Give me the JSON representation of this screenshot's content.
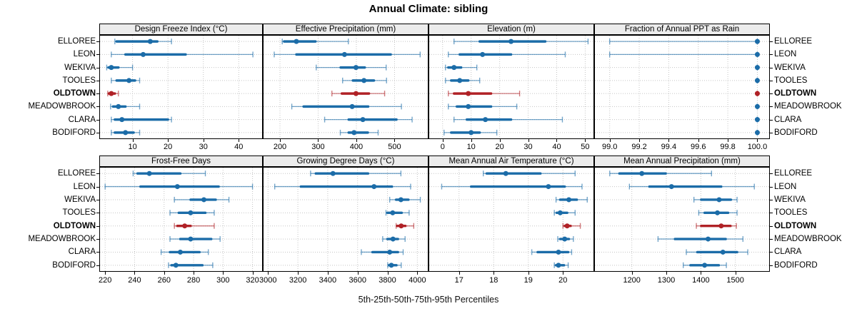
{
  "title": "Annual Climate: sibling",
  "caption": "5th-25th-50th-75th-95th Percentiles",
  "stations": [
    "ELLOREE",
    "LEON",
    "WEKIVA",
    "TOOLES",
    "OLDTOWN",
    "MEADOWBROOK",
    "CLARA",
    "BODIFORD"
  ],
  "highlight_station": "OLDTOWN",
  "colors": {
    "normal": "#1b6ca8",
    "highlight": "#b02126",
    "strip_bg": "#ececec",
    "grid": "#c5c5c5",
    "border": "#000000"
  },
  "chart_data": [
    {
      "type": "dot-whisker",
      "title": "Design Freeze Index (°C)",
      "row": 0,
      "col": 0,
      "xlim": [
        0.8,
        46.6
      ],
      "tick_values": [
        10,
        20,
        30,
        40
      ],
      "tick_labels": [
        "10",
        "20",
        "30",
        "40"
      ],
      "percentiles": [
        "5th",
        "25th",
        "50th",
        "75th",
        "95th"
      ],
      "series": [
        {
          "name": "ELLOREE",
          "p": [
            5.0,
            5.5,
            15.0,
            17.0,
            21.0
          ]
        },
        {
          "name": "LEON",
          "p": [
            4.0,
            8.0,
            13.0,
            25.0,
            44.0
          ]
        },
        {
          "name": "WEKIVA",
          "p": [
            2.7,
            3.2,
            4.0,
            6.0,
            10.0
          ]
        },
        {
          "name": "TOOLES",
          "p": [
            4.0,
            5.5,
            9.0,
            10.7,
            12.0
          ]
        },
        {
          "name": "OLDTOWN",
          "p": [
            3.0,
            3.3,
            4.0,
            5.0,
            6.0
          ]
        },
        {
          "name": "MEADOWBROOK",
          "p": [
            3.8,
            4.5,
            6.0,
            8.0,
            12.0
          ]
        },
        {
          "name": "CLARA",
          "p": [
            4.0,
            5.0,
            7.0,
            20.0,
            21.0
          ]
        },
        {
          "name": "BODIFORD",
          "p": [
            4.0,
            5.0,
            8.0,
            10.3,
            12.0
          ]
        }
      ]
    },
    {
      "type": "dot-whisker",
      "title": "Effective Precipitation (mm)",
      "row": 0,
      "col": 1,
      "xlim": [
        157,
        587
      ],
      "tick_values": [
        200,
        300,
        400,
        500
      ],
      "tick_labels": [
        "200",
        "300",
        "400",
        "500"
      ],
      "percentiles": [
        "5th",
        "25th",
        "50th",
        "75th",
        "95th"
      ],
      "series": [
        {
          "name": "ELLOREE",
          "p": [
            206,
            211,
            243,
            293,
            379
          ]
        },
        {
          "name": "LEON",
          "p": [
            185,
            243,
            369,
            490,
            567
          ]
        },
        {
          "name": "WEKIVA",
          "p": [
            295,
            359,
            399,
            422,
            478
          ]
        },
        {
          "name": "TOOLES",
          "p": [
            364,
            391,
            420,
            446,
            479
          ]
        },
        {
          "name": "OLDTOWN",
          "p": [
            336,
            362,
            399,
            433,
            474
          ]
        },
        {
          "name": "MEADOWBROOK",
          "p": [
            231,
            262,
            389,
            431,
            518
          ]
        },
        {
          "name": "CLARA",
          "p": [
            317,
            380,
            417,
            505,
            546
          ]
        },
        {
          "name": "BODIFORD",
          "p": [
            358,
            380,
            394,
            430,
            457
          ]
        }
      ]
    },
    {
      "type": "dot-whisker",
      "title": "Elevation (m)",
      "row": 0,
      "col": 2,
      "xlim": [
        -4.7,
        52.9
      ],
      "tick_values": [
        0,
        10,
        20,
        30,
        40,
        50
      ],
      "tick_labels": [
        "0",
        "10",
        "20",
        "30",
        "40",
        "50"
      ],
      "percentiles": [
        "5th",
        "25th",
        "50th",
        "75th",
        "95th"
      ],
      "series": [
        {
          "name": "ELLOREE",
          "p": [
            4.0,
            13.0,
            24.0,
            36.0,
            51.0
          ]
        },
        {
          "name": "LEON",
          "p": [
            2.0,
            6.0,
            14.0,
            24.0,
            43.0
          ]
        },
        {
          "name": "WEKIVA",
          "p": [
            1.0,
            2.0,
            4.0,
            6.5,
            12.0
          ]
        },
        {
          "name": "TOOLES",
          "p": [
            1.0,
            3.0,
            6.0,
            9.0,
            13.0
          ]
        },
        {
          "name": "OLDTOWN",
          "p": [
            2.0,
            4.0,
            9.0,
            17.0,
            27.0
          ]
        },
        {
          "name": "MEADOWBROOK",
          "p": [
            2.0,
            5.0,
            9.0,
            17.0,
            26.0
          ]
        },
        {
          "name": "CLARA",
          "p": [
            4.0,
            8.5,
            15.0,
            24.0,
            42.0
          ]
        },
        {
          "name": "BODIFORD",
          "p": [
            0.5,
            3.0,
            10.0,
            13.0,
            19.0
          ]
        }
      ]
    },
    {
      "type": "dot-whisker",
      "title": "Fraction of Annual PPT as Rain",
      "row": 0,
      "col": 3,
      "xlim": [
        98.9,
        100.08
      ],
      "tick_values": [
        99.0,
        99.2,
        99.4,
        99.6,
        99.8,
        100.0
      ],
      "tick_labels": [
        "99.0",
        "99.2",
        "99.4",
        "99.6",
        "99.8",
        "100.0"
      ],
      "percentiles": [
        "5th",
        "25th",
        "50th",
        "75th",
        "95th"
      ],
      "series": [
        {
          "name": "ELLOREE",
          "p": [
            99.0,
            100.0,
            100.0,
            100.0,
            100.0
          ]
        },
        {
          "name": "LEON",
          "p": [
            99.0,
            100.0,
            100.0,
            100.0,
            100.0
          ]
        },
        {
          "name": "WEKIVA",
          "p": [
            100.0,
            100.0,
            100.0,
            100.0,
            100.0
          ]
        },
        {
          "name": "TOOLES",
          "p": [
            100.0,
            100.0,
            100.0,
            100.0,
            100.0
          ]
        },
        {
          "name": "OLDTOWN",
          "p": [
            100.0,
            100.0,
            100.0,
            100.0,
            100.0
          ]
        },
        {
          "name": "MEADOWBROOK",
          "p": [
            100.0,
            100.0,
            100.0,
            100.0,
            100.0
          ]
        },
        {
          "name": "CLARA",
          "p": [
            100.0,
            100.0,
            100.0,
            100.0,
            100.0
          ]
        },
        {
          "name": "BODIFORD",
          "p": [
            100.0,
            100.0,
            100.0,
            100.0,
            100.0
          ]
        }
      ]
    },
    {
      "type": "dot-whisker",
      "title": "Frost-Free Days",
      "row": 1,
      "col": 0,
      "xlim": [
        216.5,
        326.5
      ],
      "tick_values": [
        220,
        240,
        260,
        280,
        300,
        320
      ],
      "tick_labels": [
        "220",
        "240",
        "260",
        "280",
        "300",
        "320"
      ],
      "percentiles": [
        "5th",
        "25th",
        "50th",
        "75th",
        "95th"
      ],
      "series": [
        {
          "name": "ELLOREE",
          "p": [
            239,
            242,
            250,
            271,
            288
          ]
        },
        {
          "name": "LEON",
          "p": [
            220,
            244,
            269,
            297,
            320
          ]
        },
        {
          "name": "WEKIVA",
          "p": [
            267,
            278,
            287,
            295,
            304
          ]
        },
        {
          "name": "TOOLES",
          "p": [
            264,
            270,
            278,
            288,
            294
          ]
        },
        {
          "name": "OLDTOWN",
          "p": [
            267,
            269,
            274,
            278,
            294
          ]
        },
        {
          "name": "MEADOWBROOK",
          "p": [
            264,
            271,
            278,
            292,
            298
          ]
        },
        {
          "name": "CLARA",
          "p": [
            258,
            264,
            271,
            284,
            290
          ]
        },
        {
          "name": "BODIFORD",
          "p": [
            263,
            265,
            268,
            286,
            293
          ]
        }
      ]
    },
    {
      "type": "dot-whisker",
      "title": "Growing Degree Days (°C)",
      "row": 1,
      "col": 1,
      "xlim": [
        2970,
        4070
      ],
      "tick_values": [
        3000,
        3200,
        3400,
        3600,
        3800,
        4000
      ],
      "tick_labels": [
        "3000",
        "3200",
        "3400",
        "3600",
        "3800",
        "4000"
      ],
      "percentiles": [
        "5th",
        "25th",
        "50th",
        "75th",
        "95th"
      ],
      "series": [
        {
          "name": "ELLOREE",
          "p": [
            3285,
            3320,
            3435,
            3670,
            3890
          ]
        },
        {
          "name": "LEON",
          "p": [
            3045,
            3220,
            3710,
            3830,
            3955
          ]
        },
        {
          "name": "WEKIVA",
          "p": [
            3815,
            3858,
            3890,
            3940,
            4020
          ]
        },
        {
          "name": "TOOLES",
          "p": [
            3790,
            3800,
            3835,
            3895,
            3945
          ]
        },
        {
          "name": "OLDTOWN",
          "p": [
            3858,
            3865,
            3892,
            3920,
            3976
          ]
        },
        {
          "name": "MEADOWBROOK",
          "p": [
            3768,
            3800,
            3837,
            3870,
            3918
          ]
        },
        {
          "name": "CLARA",
          "p": [
            3625,
            3700,
            3815,
            3870,
            3905
          ]
        },
        {
          "name": "BODIFORD",
          "p": [
            3802,
            3810,
            3826,
            3860,
            3892
          ]
        }
      ]
    },
    {
      "type": "dot-whisker",
      "title": "Mean Annual Air Temperature (°C)",
      "row": 1,
      "col": 2,
      "xlim": [
        16.14,
        20.88
      ],
      "tick_values": [
        17,
        18,
        19,
        20
      ],
      "tick_labels": [
        "17",
        "18",
        "19",
        "20"
      ],
      "percentiles": [
        "5th",
        "25th",
        "50th",
        "75th",
        "95th"
      ],
      "series": [
        {
          "name": "ELLOREE",
          "p": [
            17.7,
            17.8,
            18.35,
            19.35,
            20.35
          ]
        },
        {
          "name": "LEON",
          "p": [
            16.5,
            17.35,
            19.58,
            20.05,
            20.55
          ]
        },
        {
          "name": "WEKIVA",
          "p": [
            19.8,
            19.92,
            20.17,
            20.4,
            20.7
          ]
        },
        {
          "name": "TOOLES",
          "p": [
            19.75,
            19.82,
            19.92,
            20.12,
            20.35
          ]
        },
        {
          "name": "OLDTOWN",
          "p": [
            20.0,
            20.05,
            20.12,
            20.22,
            20.5
          ]
        },
        {
          "name": "MEADOWBROOK",
          "p": [
            19.85,
            19.92,
            20.05,
            20.17,
            20.3
          ]
        },
        {
          "name": "CLARA",
          "p": [
            19.1,
            19.27,
            19.87,
            20.15,
            20.25
          ]
        },
        {
          "name": "BODIFORD",
          "p": [
            19.75,
            19.8,
            19.87,
            20.03,
            20.15
          ]
        }
      ]
    },
    {
      "type": "dot-whisker",
      "title": "Mean Annual Precipitation (mm)",
      "row": 1,
      "col": 3,
      "xlim": [
        1093,
        1598
      ],
      "tick_values": [
        1200,
        1300,
        1400,
        1500
      ],
      "tick_labels": [
        "1200",
        "1300",
        "1400",
        "1500"
      ],
      "percentiles": [
        "5th",
        "25th",
        "50th",
        "75th",
        "95th"
      ],
      "series": [
        {
          "name": "ELLOREE",
          "p": [
            1136,
            1164,
            1229,
            1298,
            1431
          ]
        },
        {
          "name": "LEON",
          "p": [
            1193,
            1251,
            1315,
            1459,
            1555
          ]
        },
        {
          "name": "WEKIVA",
          "p": [
            1380,
            1401,
            1453,
            1487,
            1505
          ]
        },
        {
          "name": "TOOLES",
          "p": [
            1394,
            1411,
            1448,
            1479,
            1505
          ]
        },
        {
          "name": "OLDTOWN",
          "p": [
            1387,
            1401,
            1459,
            1486,
            1503
          ]
        },
        {
          "name": "MEADOWBROOK",
          "p": [
            1276,
            1325,
            1421,
            1472,
            1522
          ]
        },
        {
          "name": "CLARA",
          "p": [
            1358,
            1390,
            1464,
            1505,
            1536
          ]
        },
        {
          "name": "BODIFORD",
          "p": [
            1349,
            1370,
            1411,
            1452,
            1474
          ]
        }
      ]
    }
  ]
}
